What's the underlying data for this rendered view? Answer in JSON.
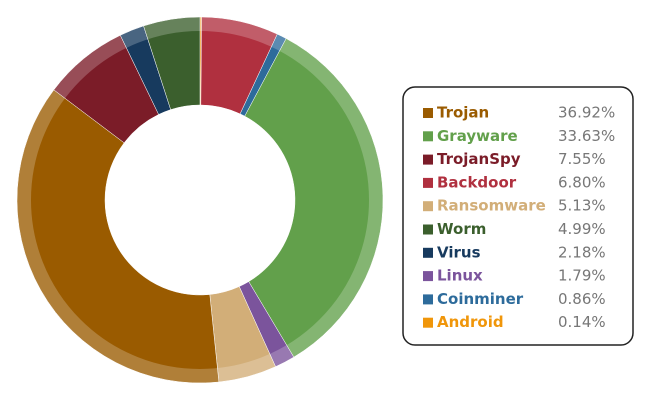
{
  "chart_data": {
    "type": "donut",
    "series": [
      {
        "name": "Trojan",
        "color": "#9a5b00",
        "value": 36.92,
        "value_label": "36.92%"
      },
      {
        "name": "Grayware",
        "color": "#62a04b",
        "value": 33.63,
        "value_label": "33.63%"
      },
      {
        "name": "TrojanSpy",
        "color": "#7b1c28",
        "value": 7.55,
        "value_label": "7.55%"
      },
      {
        "name": "Backdoor",
        "color": "#b0303f",
        "value": 6.8,
        "value_label": "6.80%"
      },
      {
        "name": "Ransomware",
        "color": "#d2ae78",
        "value": 5.13,
        "value_label": "5.13%"
      },
      {
        "name": "Worm",
        "color": "#3b5f2d",
        "value": 4.99,
        "value_label": "4.99%"
      },
      {
        "name": "Virus",
        "color": "#173a5e",
        "value": 2.18,
        "value_label": "2.18%"
      },
      {
        "name": "Linux",
        "color": "#7b549c",
        "value": 1.79,
        "value_label": "1.79%"
      },
      {
        "name": "Coinminer",
        "color": "#2d6b9b",
        "value": 0.86,
        "value_label": "0.86%"
      },
      {
        "name": "Android",
        "color": "#f0960a",
        "value": 0.14,
        "value_label": "0.14%"
      }
    ]
  }
}
